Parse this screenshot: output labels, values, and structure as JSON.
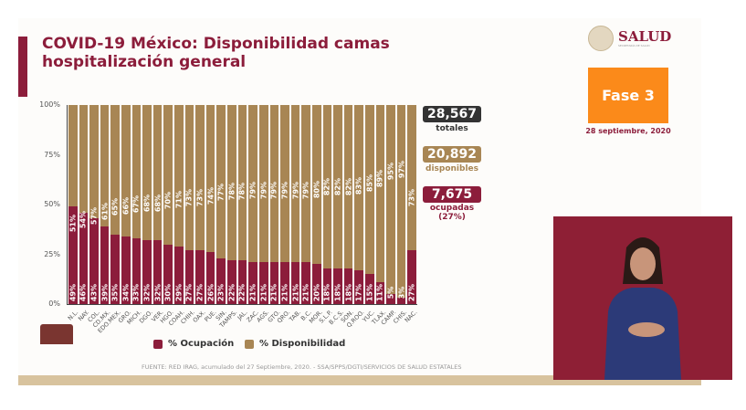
{
  "title": "COVID-19 México: Disponibilidad camas hospitalización general",
  "logo": {
    "name": "SALUD",
    "subtitle": "SECRETARÍA DE SALUD"
  },
  "phase": "Fase 3",
  "date": "28 septiembre, 2020",
  "stats": [
    {
      "value": "28,567",
      "label": "totales",
      "color": "#333333"
    },
    {
      "value": "20,892",
      "label": "disponibles",
      "color": "#a88654"
    },
    {
      "value": "7,675",
      "label": "ocupadas",
      "sublabel": "(27%)",
      "color": "#8c1d3b"
    }
  ],
  "source": "FUENTE: RED IRAG, acumulado del 27 Septiembre, 2020. -  SSA/SPPS/DGTI/SERVICIOS DE SALUD ESTATALES",
  "chart_data": {
    "type": "bar",
    "stacked": true,
    "percent": true,
    "categories": [
      "N.L.",
      "NAY.",
      "COL.",
      "CD.MX.",
      "EDO.MEX.",
      "GRO.",
      "MICH.",
      "DGO.",
      "VER.",
      "HGO.",
      "COAH.",
      "CHIH.",
      "OAX.",
      "PUE.",
      "SIN.",
      "TAMPS.",
      "JAL.",
      "ZAC.",
      "AGS.",
      "GTO.",
      "QRO.",
      "TAB.",
      "B.C.",
      "MOR.",
      "S.L.P.",
      "B.C.S.",
      "SON.",
      "Q.ROO.",
      "YUC.",
      "TLAX.",
      "CAMP.",
      "CHIS.",
      "NAC."
    ],
    "series": [
      {
        "name": "% Ocupación",
        "color": "#8c1d3b",
        "values": [
          49,
          46,
          43,
          39,
          35,
          34,
          33,
          32,
          32,
          30,
          29,
          27,
          27,
          26,
          23,
          22,
          22,
          21,
          21,
          21,
          21,
          21,
          21,
          20,
          18,
          18,
          18,
          17,
          15,
          11,
          5,
          3,
          27
        ]
      },
      {
        "name": "% Disponibilidad",
        "color": "#a88654",
        "values": [
          51,
          54,
          57,
          61,
          65,
          66,
          67,
          68,
          68,
          70,
          71,
          73,
          73,
          74,
          77,
          78,
          78,
          79,
          79,
          79,
          79,
          79,
          79,
          80,
          82,
          82,
          82,
          83,
          85,
          89,
          95,
          97,
          73
        ]
      }
    ],
    "yticks": [
      "0%",
      "25%",
      "50%",
      "75%",
      "100%"
    ],
    "ylim": [
      0,
      100
    ],
    "legend": "bottom"
  }
}
